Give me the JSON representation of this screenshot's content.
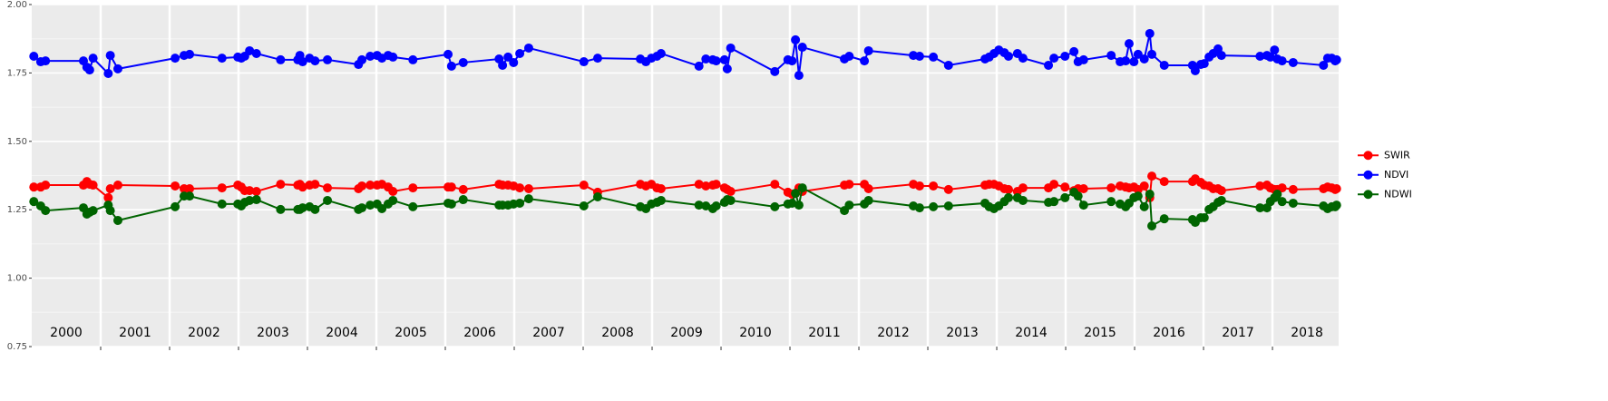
{
  "chart_data": {
    "type": "line",
    "x": [
      2000.03,
      2000.13,
      2000.2,
      2000.75,
      2000.8,
      2000.84,
      2000.89,
      2001.11,
      2001.14,
      2001.25,
      2002.08,
      2002.21,
      2002.29,
      2002.76,
      2002.99,
      2003.04,
      2003.09,
      2003.16,
      2003.26,
      2003.61,
      2003.86,
      2003.89,
      2003.93,
      2004.03,
      2004.11,
      2004.29,
      2004.74,
      2004.79,
      2004.91,
      2005.01,
      2005.08,
      2005.17,
      2005.24,
      2005.53,
      2006.04,
      2006.09,
      2006.26,
      2006.78,
      2006.83,
      2006.91,
      2006.99,
      2007.08,
      2007.21,
      2008.01,
      2008.21,
      2008.83,
      2008.91,
      2008.99,
      2009.07,
      2009.13,
      2009.68,
      2009.78,
      2009.88,
      2009.93,
      2010.05,
      2010.09,
      2010.14,
      2010.78,
      2010.97,
      2011.03,
      2011.08,
      2011.13,
      2011.18,
      2011.79,
      2011.86,
      2012.08,
      2012.14,
      2012.79,
      2012.88,
      2013.08,
      2013.3,
      2013.83,
      2013.89,
      2013.96,
      2014.03,
      2014.11,
      2014.17,
      2014.3,
      2014.38,
      2014.75,
      2014.83,
      2014.99,
      2015.12,
      2015.18,
      2015.26,
      2015.66,
      2015.79,
      2015.87,
      2015.92,
      2015.99,
      2016.05,
      2016.14,
      2016.22,
      2016.25,
      2016.43,
      2016.84,
      2016.88,
      2016.96,
      2017.01,
      2017.08,
      2017.14,
      2017.21,
      2017.26,
      2017.82,
      2017.92,
      2017.97,
      2018.03,
      2018.07,
      2018.14,
      2018.3,
      2018.74,
      2018.8,
      2018.86,
      2018.91,
      2018.93
    ],
    "series": [
      {
        "name": "SWIR",
        "color": "#ff0000",
        "values": [
          1.333,
          1.333,
          1.34,
          1.34,
          1.353,
          1.343,
          1.34,
          1.294,
          1.327,
          1.34,
          1.337,
          1.327,
          1.327,
          1.33,
          1.34,
          1.333,
          1.32,
          1.32,
          1.317,
          1.343,
          1.34,
          1.343,
          1.333,
          1.34,
          1.343,
          1.33,
          1.327,
          1.337,
          1.34,
          1.34,
          1.343,
          1.333,
          1.317,
          1.33,
          1.333,
          1.333,
          1.324,
          1.343,
          1.34,
          1.34,
          1.337,
          1.33,
          1.327,
          1.34,
          1.314,
          1.343,
          1.337,
          1.343,
          1.33,
          1.327,
          1.343,
          1.337,
          1.34,
          1.343,
          1.33,
          1.324,
          1.317,
          1.343,
          1.314,
          1.307,
          1.31,
          1.33,
          1.317,
          1.34,
          1.343,
          1.343,
          1.327,
          1.343,
          1.337,
          1.337,
          1.324,
          1.34,
          1.343,
          1.343,
          1.337,
          1.327,
          1.324,
          1.317,
          1.33,
          1.33,
          1.343,
          1.333,
          1.32,
          1.327,
          1.327,
          1.33,
          1.337,
          1.333,
          1.33,
          1.333,
          1.324,
          1.337,
          1.294,
          1.373,
          1.353,
          1.353,
          1.363,
          1.35,
          1.34,
          1.337,
          1.327,
          1.327,
          1.32,
          1.337,
          1.34,
          1.33,
          1.324,
          1.324,
          1.33,
          1.324,
          1.327,
          1.333,
          1.33,
          1.324,
          1.327
        ]
      },
      {
        "name": "NDVI",
        "color": "#0000ff",
        "values": [
          1.811,
          1.791,
          1.794,
          1.794,
          1.771,
          1.761,
          1.804,
          1.748,
          1.814,
          1.765,
          1.804,
          1.814,
          1.818,
          1.804,
          1.808,
          1.804,
          1.811,
          1.831,
          1.821,
          1.798,
          1.798,
          1.814,
          1.791,
          1.804,
          1.794,
          1.798,
          1.781,
          1.798,
          1.811,
          1.814,
          1.804,
          1.814,
          1.808,
          1.798,
          1.818,
          1.775,
          1.788,
          1.801,
          1.778,
          1.808,
          1.788,
          1.821,
          1.841,
          1.791,
          1.804,
          1.801,
          1.791,
          1.804,
          1.811,
          1.821,
          1.775,
          1.801,
          1.798,
          1.794,
          1.798,
          1.765,
          1.841,
          1.755,
          1.798,
          1.794,
          1.871,
          1.741,
          1.844,
          1.801,
          1.811,
          1.794,
          1.831,
          1.814,
          1.811,
          1.808,
          1.778,
          1.801,
          1.808,
          1.821,
          1.834,
          1.824,
          1.811,
          1.821,
          1.804,
          1.778,
          1.804,
          1.811,
          1.828,
          1.791,
          1.798,
          1.814,
          1.791,
          1.794,
          1.857,
          1.791,
          1.818,
          1.801,
          1.894,
          1.818,
          1.778,
          1.778,
          1.758,
          1.781,
          1.784,
          1.808,
          1.821,
          1.838,
          1.814,
          1.811,
          1.814,
          1.808,
          1.834,
          1.801,
          1.794,
          1.788,
          1.778,
          1.804,
          1.804,
          1.794,
          1.798
        ]
      },
      {
        "name": "NDWI",
        "color": "#006400",
        "values": [
          1.28,
          1.264,
          1.247,
          1.257,
          1.234,
          1.241,
          1.247,
          1.267,
          1.247,
          1.211,
          1.261,
          1.3,
          1.3,
          1.271,
          1.271,
          1.264,
          1.277,
          1.284,
          1.287,
          1.251,
          1.251,
          1.251,
          1.257,
          1.261,
          1.251,
          1.284,
          1.251,
          1.257,
          1.267,
          1.271,
          1.254,
          1.271,
          1.284,
          1.261,
          1.274,
          1.271,
          1.287,
          1.267,
          1.267,
          1.267,
          1.271,
          1.274,
          1.29,
          1.264,
          1.297,
          1.261,
          1.254,
          1.271,
          1.277,
          1.284,
          1.267,
          1.264,
          1.254,
          1.264,
          1.277,
          1.287,
          1.284,
          1.261,
          1.271,
          1.274,
          1.31,
          1.267,
          1.33,
          1.247,
          1.267,
          1.271,
          1.284,
          1.264,
          1.257,
          1.261,
          1.264,
          1.274,
          1.261,
          1.254,
          1.264,
          1.28,
          1.294,
          1.294,
          1.284,
          1.277,
          1.28,
          1.294,
          1.314,
          1.3,
          1.267,
          1.28,
          1.271,
          1.261,
          1.274,
          1.294,
          1.3,
          1.261,
          1.307,
          1.191,
          1.217,
          1.214,
          1.204,
          1.221,
          1.221,
          1.251,
          1.261,
          1.277,
          1.284,
          1.257,
          1.257,
          1.28,
          1.294,
          1.307,
          1.28,
          1.274,
          1.264,
          1.254,
          1.261,
          1.261,
          1.267
        ]
      }
    ],
    "xlim": [
      2000,
      2018.96
    ],
    "ylim": [
      0.75,
      2.0
    ],
    "yticks": [
      {
        "value": 0.75,
        "label": "0.75"
      },
      {
        "value": 1.0,
        "label": "1.00"
      },
      {
        "value": 1.25,
        "label": "1.25"
      },
      {
        "value": 1.5,
        "label": "1.50"
      },
      {
        "value": 1.75,
        "label": "1.75"
      },
      {
        "value": 2.0,
        "label": "2.00"
      }
    ],
    "vlines": [
      2001,
      2002,
      2003,
      2004,
      2005,
      2006,
      2007,
      2008,
      2009,
      2010,
      2011,
      2012,
      2013,
      2014,
      2015,
      2016,
      2017,
      2018
    ],
    "annotations": [
      {
        "x": 2000.5,
        "text": "2000"
      },
      {
        "x": 2001.5,
        "text": "2001"
      },
      {
        "x": 2002.5,
        "text": "2002"
      },
      {
        "x": 2003.5,
        "text": "2003"
      },
      {
        "x": 2004.5,
        "text": "2004"
      },
      {
        "x": 2005.5,
        "text": "2005"
      },
      {
        "x": 2006.5,
        "text": "2006"
      },
      {
        "x": 2007.5,
        "text": "2007"
      },
      {
        "x": 2008.5,
        "text": "2008"
      },
      {
        "x": 2009.5,
        "text": "2009"
      },
      {
        "x": 2010.5,
        "text": "2010"
      },
      {
        "x": 2011.5,
        "text": "2011"
      },
      {
        "x": 2012.5,
        "text": "2012"
      },
      {
        "x": 2013.5,
        "text": "2013"
      },
      {
        "x": 2014.5,
        "text": "2014"
      },
      {
        "x": 2015.5,
        "text": "2015"
      },
      {
        "x": 2016.5,
        "text": "2016"
      },
      {
        "x": 2017.5,
        "text": "2017"
      },
      {
        "x": 2018.5,
        "text": "2018"
      }
    ],
    "grid": true,
    "legend": "right"
  }
}
